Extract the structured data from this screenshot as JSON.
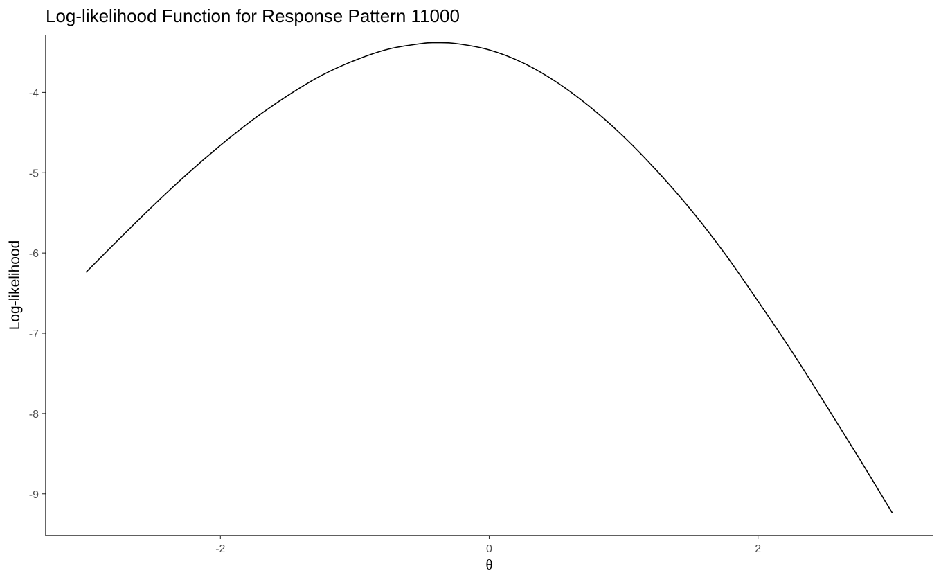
{
  "chart_data": {
    "type": "line",
    "title": "Log-likelihood Function for Response Pattern 11000",
    "xlabel": "θ",
    "ylabel": "Log-likelihood",
    "xlim": [
      -3.3,
      3.3
    ],
    "ylim": [
      -9.52,
      -3.28
    ],
    "x_ticks": [
      -2,
      0,
      2
    ],
    "x_tick_labels": [
      "-2",
      "0",
      "2"
    ],
    "y_ticks": [
      -4,
      -5,
      -6,
      -7,
      -8,
      -9
    ],
    "y_tick_labels": [
      "-4",
      "-5",
      "-6",
      "-7",
      "-8",
      "-9"
    ],
    "grid": false,
    "legend": "none",
    "line_color": "#000000",
    "series": [
      {
        "x": [
          -3.0,
          -2.75,
          -2.5,
          -2.25,
          -2.0,
          -1.75,
          -1.5,
          -1.25,
          -1.0,
          -0.75,
          -0.5,
          -0.4,
          -0.25,
          0.0,
          0.25,
          0.5,
          0.75,
          1.0,
          1.25,
          1.5,
          1.75,
          2.0,
          2.25,
          2.5,
          2.75,
          3.0
        ],
        "y": [
          -6.24,
          -5.82,
          -5.41,
          -5.02,
          -4.66,
          -4.33,
          -4.04,
          -3.79,
          -3.6,
          -3.46,
          -3.39,
          -3.38,
          -3.39,
          -3.47,
          -3.63,
          -3.87,
          -4.18,
          -4.55,
          -4.98,
          -5.46,
          -6.0,
          -6.6,
          -7.22,
          -7.88,
          -8.55,
          -9.24
        ]
      }
    ]
  }
}
